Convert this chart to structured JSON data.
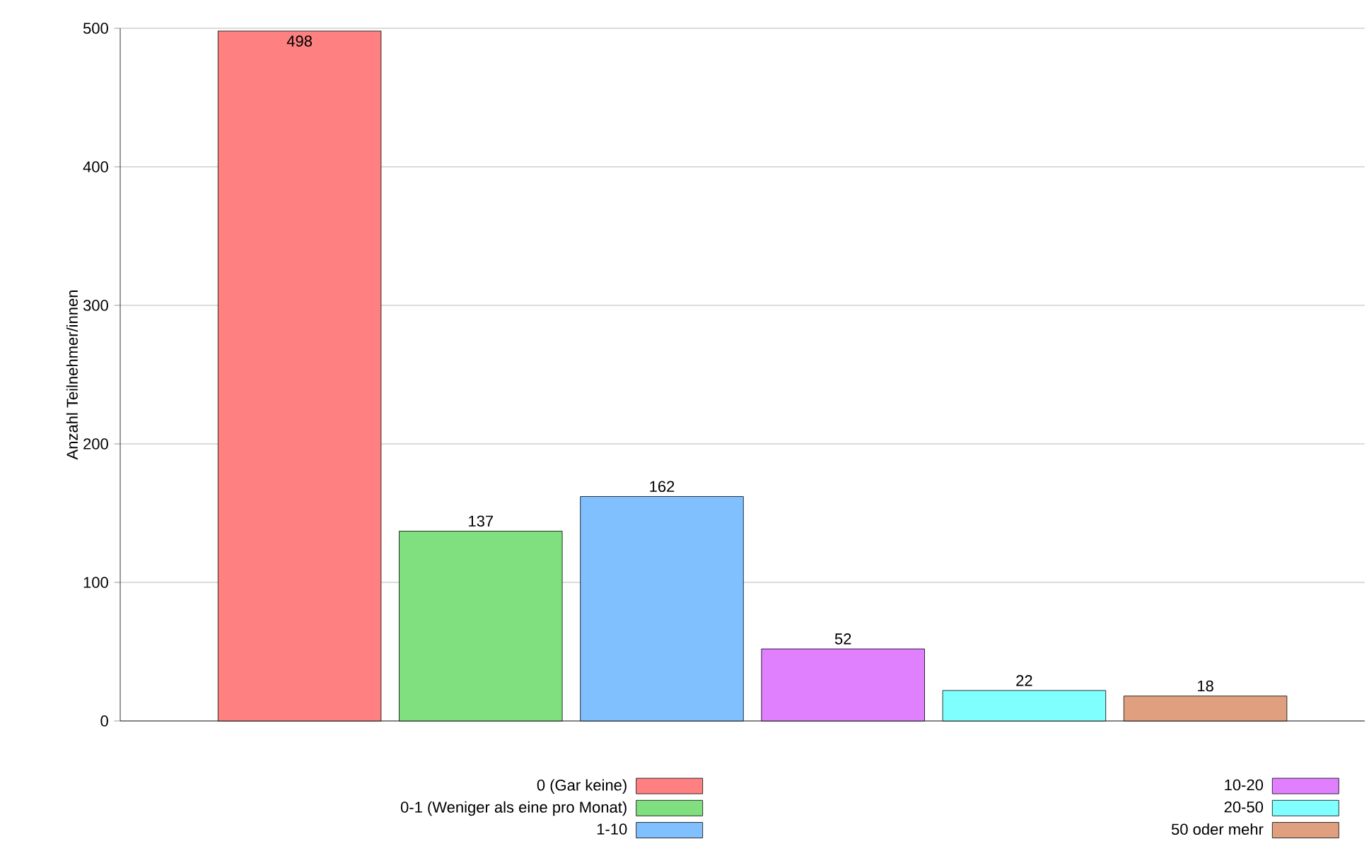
{
  "chart_data": {
    "type": "bar",
    "ylabel": "Anzahl Teilnehmer/innen",
    "categories": [
      null,
      null,
      null,
      null,
      null,
      null
    ],
    "series": [
      {
        "name": "0 (Gar keine)",
        "color": "#ff8080",
        "values": [
          498,
          null,
          null,
          null,
          null,
          null
        ]
      },
      {
        "name": "0-1 (Weniger als eine pro Monat)",
        "color": "#80e080",
        "values": [
          null,
          137,
          null,
          null,
          null,
          null
        ]
      },
      {
        "name": "1-10",
        "color": "#80c0ff",
        "values": [
          null,
          null,
          162,
          null,
          null,
          null
        ]
      },
      {
        "name": "10-20",
        "color": "#e080ff",
        "values": [
          null,
          null,
          null,
          52,
          null,
          null
        ]
      },
      {
        "name": "20-50",
        "color": "#80ffff",
        "values": [
          null,
          null,
          null,
          null,
          22,
          null
        ]
      },
      {
        "name": "50 oder mehr",
        "color": "#e0a080",
        "values": [
          null,
          null,
          null,
          null,
          null,
          18
        ]
      }
    ],
    "ylim": [
      0,
      500
    ],
    "yticks": [
      0,
      100,
      200,
      300,
      400,
      500
    ],
    "grid": "y",
    "legend": "bottom",
    "tick_labels": "y",
    "data_labels": true
  }
}
